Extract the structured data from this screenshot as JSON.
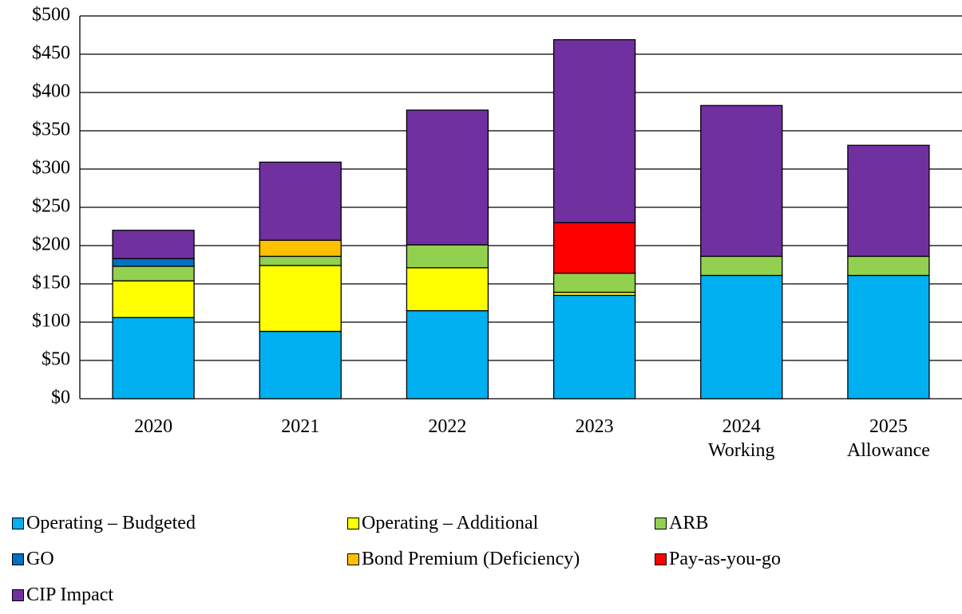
{
  "chart_data": {
    "type": "stacked_bar",
    "categories": [
      "2020",
      "2021",
      "2022",
      "2023",
      "2024 Working",
      "2025 Allowance"
    ],
    "series": [
      {
        "name": "Operating – Budgeted",
        "color": "#00b0f0",
        "values": [
          106,
          88,
          115,
          135,
          161,
          161
        ]
      },
      {
        "name": "Operating – Additional",
        "color": "#ffff00",
        "values": [
          48,
          86,
          56,
          4,
          null,
          null
        ]
      },
      {
        "name": "ARB",
        "color": "#92d050",
        "values": [
          19,
          12,
          30,
          25,
          25,
          25
        ]
      },
      {
        "name": "GO",
        "color": "#0070c0",
        "values": [
          10,
          null,
          null,
          null,
          null,
          null
        ]
      },
      {
        "name": "Bond Premium (Deficiency)",
        "color": "#ffc000",
        "values": [
          null,
          21,
          null,
          null,
          null,
          null
        ]
      },
      {
        "name": "Pay-as-you-go",
        "color": "#ff0000",
        "values": [
          null,
          null,
          null,
          66,
          null,
          null
        ]
      },
      {
        "name": "CIP Impact",
        "color": "#7030a0",
        "values": [
          37,
          102,
          176,
          239,
          197,
          145
        ]
      }
    ],
    "ylim": [
      0,
      500
    ],
    "yticks": [
      {
        "value": 0,
        "label": "$0"
      },
      {
        "value": 50,
        "label": "$50"
      },
      {
        "value": 100,
        "label": "$100"
      },
      {
        "value": 150,
        "label": "$150"
      },
      {
        "value": 200,
        "label": "$200"
      },
      {
        "value": 250,
        "label": "$250"
      },
      {
        "value": 300,
        "label": "$300"
      },
      {
        "value": 350,
        "label": "$350"
      },
      {
        "value": 400,
        "label": "$400"
      },
      {
        "value": 450,
        "label": "$450"
      },
      {
        "value": 500,
        "label": "$500"
      }
    ],
    "grid": true,
    "legend": "bottom"
  }
}
